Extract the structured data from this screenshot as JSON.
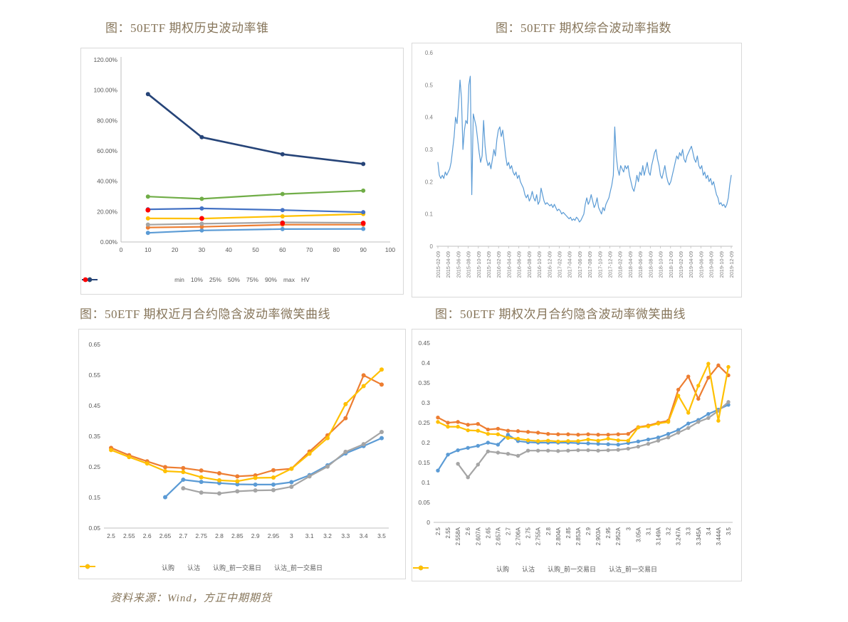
{
  "page": {
    "figure_titles": [
      "图：50ETF 期权历史波动率锥",
      "图：50ETF 期权综合波动率指数",
      "图：50ETF 期权近月合约隐含波动率微笑曲线",
      "图：50ETF 期权次月合约隐含波动率微笑曲线"
    ],
    "source_note": "资料来源：Wind，方正中期期货"
  },
  "colors": {
    "title_text": "#86755A",
    "axis_text": "#595959",
    "axis_line": "#BFBFBF",
    "chart_border": "#D9D9D9",
    "series_light_blue": "#5B9BD5",
    "series_orange": "#ED7D31",
    "series_gray": "#A5A5A5",
    "series_yellow": "#FFC000",
    "series_mid_blue": "#4472C4",
    "series_green": "#70AD47",
    "series_navy": "#264478",
    "series_red": "#FF0000"
  },
  "chart_data": [
    {
      "id": "hist-vol-cone",
      "type": "line",
      "title": "图：50ETF 期权历史波动率锥",
      "x_numeric": [
        10,
        30,
        60,
        90
      ],
      "xlim": [
        0,
        100
      ],
      "xticks": [
        {
          "v": 0,
          "label": "0"
        },
        {
          "v": 10,
          "label": "10"
        },
        {
          "v": 20,
          "label": "20"
        },
        {
          "v": 30,
          "label": "30"
        },
        {
          "v": 40,
          "label": "40"
        },
        {
          "v": 50,
          "label": "50"
        },
        {
          "v": 60,
          "label": "60"
        },
        {
          "v": 70,
          "label": "70"
        },
        {
          "v": 80,
          "label": "80"
        },
        {
          "v": 90,
          "label": "90"
        },
        {
          "v": 100,
          "label": "100"
        }
      ],
      "ylim": [
        0,
        1.2
      ],
      "yticks": [
        {
          "v": 0,
          "label": "0.00%"
        },
        {
          "v": 0.2,
          "label": "20.00%"
        },
        {
          "v": 0.4,
          "label": "40.00%"
        },
        {
          "v": 0.6,
          "label": "60.00%"
        },
        {
          "v": 0.8,
          "label": "80.00%"
        },
        {
          "v": 1.0,
          "label": "100.00%"
        },
        {
          "v": 1.2,
          "label": "120.00%"
        }
      ],
      "legend_position": "bottom",
      "series": [
        {
          "name": "min",
          "color": "#5B9BD5",
          "values": [
            0.06,
            0.076,
            0.085,
            0.086
          ]
        },
        {
          "name": "10%",
          "color": "#ED7D31",
          "values": [
            0.095,
            0.1,
            0.114,
            0.114
          ]
        },
        {
          "name": "25%",
          "color": "#A5A5A5",
          "values": [
            0.114,
            0.12,
            0.129,
            0.126
          ]
        },
        {
          "name": "50%",
          "color": "#FFC000",
          "values": [
            0.155,
            0.154,
            0.169,
            0.184
          ]
        },
        {
          "name": "75%",
          "color": "#4472C4",
          "values": [
            0.215,
            0.221,
            0.21,
            0.196
          ]
        },
        {
          "name": "90%",
          "color": "#70AD47",
          "values": [
            0.299,
            0.284,
            0.316,
            0.338
          ]
        },
        {
          "name": "max",
          "color": "#264478",
          "width": 2.6,
          "values": [
            0.974,
            0.69,
            0.578,
            0.514
          ]
        },
        {
          "name": "HV",
          "color": "#FF0000",
          "marker_only": true,
          "values": [
            0.21,
            0.155,
            0.124,
            0.124
          ]
        }
      ]
    },
    {
      "id": "composite-vol-index",
      "type": "line",
      "title": "图：50ETF 期权综合波动率指数",
      "ylim": [
        0,
        0.6
      ],
      "yticks": [
        {
          "v": 0,
          "label": "0"
        },
        {
          "v": 0.1,
          "label": "0.1"
        },
        {
          "v": 0.2,
          "label": "0.2"
        },
        {
          "v": 0.3,
          "label": "0.3"
        },
        {
          "v": 0.4,
          "label": "0.4"
        },
        {
          "v": 0.5,
          "label": "0.5"
        },
        {
          "v": 0.6,
          "label": "0.6"
        }
      ],
      "xtick_labels": [
        "2015-02-09",
        "2015-04-09",
        "2015-06-09",
        "2015-08-09",
        "2015-10-09",
        "2015-12-09",
        "2016-02-09",
        "2016-04-09",
        "2016-06-09",
        "2016-08-09",
        "2016-10-09",
        "2016-12-09",
        "2017-02-09",
        "2017-04-09",
        "2017-06-09",
        "2017-08-09",
        "2017-10-09",
        "2017-12-09",
        "2018-02-09",
        "2018-04-09",
        "2018-06-09",
        "2018-08-09",
        "2018-10-09",
        "2018-12-09",
        "2019-02-09",
        "2019-04-09",
        "2019-06-09",
        "2019-08-09",
        "2019-10-09",
        "2019-12-09"
      ],
      "legend_position": "none",
      "series": [
        {
          "name": "综合波动率指数",
          "color": "#5B9BD5",
          "width": 1.2,
          "no_marker": true,
          "values": [
            0.26,
            0.22,
            0.21,
            0.22,
            0.21,
            0.23,
            0.22,
            0.23,
            0.24,
            0.26,
            0.3,
            0.34,
            0.4,
            0.38,
            0.44,
            0.515,
            0.46,
            0.3,
            0.36,
            0.39,
            0.38,
            0.5,
            0.527,
            0.16,
            0.41,
            0.39,
            0.37,
            0.33,
            0.29,
            0.26,
            0.28,
            0.39,
            0.31,
            0.27,
            0.25,
            0.26,
            0.24,
            0.27,
            0.3,
            0.28,
            0.33,
            0.36,
            0.37,
            0.34,
            0.36,
            0.32,
            0.28,
            0.25,
            0.26,
            0.24,
            0.25,
            0.23,
            0.22,
            0.23,
            0.21,
            0.22,
            0.2,
            0.19,
            0.18,
            0.16,
            0.15,
            0.16,
            0.14,
            0.15,
            0.17,
            0.15,
            0.14,
            0.16,
            0.13,
            0.14,
            0.18,
            0.16,
            0.14,
            0.13,
            0.135,
            0.13,
            0.125,
            0.13,
            0.12,
            0.13,
            0.12,
            0.11,
            0.115,
            0.11,
            0.1,
            0.105,
            0.1,
            0.095,
            0.09,
            0.085,
            0.09,
            0.08,
            0.085,
            0.08,
            0.09,
            0.085,
            0.075,
            0.08,
            0.09,
            0.1,
            0.13,
            0.15,
            0.13,
            0.14,
            0.16,
            0.14,
            0.12,
            0.13,
            0.15,
            0.12,
            0.11,
            0.1,
            0.12,
            0.11,
            0.13,
            0.14,
            0.15,
            0.17,
            0.19,
            0.22,
            0.37,
            0.28,
            0.24,
            0.22,
            0.25,
            0.24,
            0.23,
            0.25,
            0.24,
            0.25,
            0.22,
            0.2,
            0.18,
            0.17,
            0.19,
            0.22,
            0.2,
            0.23,
            0.22,
            0.25,
            0.22,
            0.24,
            0.26,
            0.23,
            0.22,
            0.25,
            0.27,
            0.29,
            0.3,
            0.27,
            0.25,
            0.22,
            0.21,
            0.23,
            0.25,
            0.22,
            0.2,
            0.19,
            0.2,
            0.22,
            0.24,
            0.26,
            0.28,
            0.27,
            0.29,
            0.28,
            0.3,
            0.27,
            0.26,
            0.28,
            0.29,
            0.3,
            0.31,
            0.29,
            0.27,
            0.26,
            0.28,
            0.25,
            0.24,
            0.25,
            0.22,
            0.23,
            0.21,
            0.22,
            0.2,
            0.21,
            0.19,
            0.2,
            0.18,
            0.16,
            0.15,
            0.13,
            0.135,
            0.125,
            0.13,
            0.12,
            0.13,
            0.15,
            0.19,
            0.22
          ]
        }
      ]
    },
    {
      "id": "near-smile",
      "type": "line",
      "title": "图：50ETF 期权近月合约隐含波动率微笑曲线",
      "categories": [
        "2.5",
        "2.55",
        "2.6",
        "2.65",
        "2.7",
        "2.75",
        "2.8",
        "2.85",
        "2.9",
        "2.95",
        "3",
        "3.1",
        "3.2",
        "3.3",
        "3.4",
        "3.5"
      ],
      "ylim": [
        0.05,
        0.65
      ],
      "yticks": [
        {
          "v": 0.05,
          "label": "0.05"
        },
        {
          "v": 0.15,
          "label": "0.15"
        },
        {
          "v": 0.25,
          "label": "0.25"
        },
        {
          "v": 0.35,
          "label": "0.35"
        },
        {
          "v": 0.45,
          "label": "0.45"
        },
        {
          "v": 0.55,
          "label": "0.55"
        },
        {
          "v": 0.65,
          "label": "0.65"
        }
      ],
      "legend_position": "bottom",
      "series": [
        {
          "name": "认购",
          "color": "#5B9BD5",
          "values": [
            null,
            null,
            null,
            0.151,
            0.208,
            0.201,
            0.197,
            0.193,
            0.192,
            0.192,
            0.2,
            0.223,
            0.255,
            0.294,
            0.318,
            0.344
          ]
        },
        {
          "name": "认沽",
          "color": "#ED7D31",
          "values": [
            0.312,
            0.288,
            0.268,
            0.249,
            0.246,
            0.238,
            0.229,
            0.219,
            0.222,
            0.239,
            0.244,
            0.3,
            0.353,
            0.409,
            0.549,
            0.519
          ]
        },
        {
          "name": "认购_前一交易日",
          "color": "#A5A5A5",
          "values": [
            null,
            null,
            null,
            null,
            0.18,
            0.166,
            0.163,
            0.17,
            0.173,
            0.174,
            0.185,
            0.219,
            0.251,
            0.299,
            0.324,
            0.364
          ]
        },
        {
          "name": "认沽_前一交易日",
          "color": "#FFC000",
          "values": [
            0.305,
            0.282,
            0.261,
            0.236,
            0.233,
            0.216,
            0.206,
            0.203,
            0.214,
            0.215,
            0.244,
            0.293,
            0.344,
            0.455,
            0.514,
            0.568
          ]
        }
      ]
    },
    {
      "id": "next-smile",
      "type": "line",
      "title": "图：50ETF 期权次月合约隐含波动率微笑曲线",
      "categories": [
        "2.5",
        "2.55",
        "2.558A",
        "2.6",
        "2.607A",
        "2.65",
        "2.657A",
        "2.7",
        "2.706A",
        "2.75",
        "2.755A",
        "2.8",
        "2.804A",
        "2.85",
        "2.853A",
        "2.9",
        "2.903A",
        "2.95",
        "2.952A",
        "3",
        "3.05A",
        "3.1",
        "3.149A",
        "3.2",
        "3.247A",
        "3.3",
        "3.345A",
        "3.4",
        "3.444A",
        "3.5"
      ],
      "ylim": [
        0,
        0.45
      ],
      "yticks": [
        {
          "v": 0,
          "label": "0"
        },
        {
          "v": 0.05,
          "label": "0.05"
        },
        {
          "v": 0.1,
          "label": "0.1"
        },
        {
          "v": 0.15,
          "label": "0.15"
        },
        {
          "v": 0.2,
          "label": "0.2"
        },
        {
          "v": 0.25,
          "label": "0.25"
        },
        {
          "v": 0.3,
          "label": "0.3"
        },
        {
          "v": 0.35,
          "label": "0.35"
        },
        {
          "v": 0.4,
          "label": "0.4"
        },
        {
          "v": 0.45,
          "label": "0.45"
        }
      ],
      "legend_position": "bottom",
      "series": [
        {
          "name": "认购",
          "color": "#5B9BD5",
          "values": [
            0.13,
            0.17,
            0.181,
            0.187,
            0.192,
            0.2,
            0.195,
            0.22,
            0.204,
            0.201,
            0.2,
            0.2,
            0.2,
            0.2,
            0.199,
            0.198,
            0.197,
            0.196,
            0.195,
            0.199,
            0.203,
            0.208,
            0.213,
            0.222,
            0.232,
            0.248,
            0.257,
            0.272,
            0.283,
            0.295
          ]
        },
        {
          "name": "认沽",
          "color": "#ED7D31",
          "values": [
            0.263,
            0.25,
            0.252,
            0.245,
            0.247,
            0.233,
            0.235,
            0.23,
            0.229,
            0.227,
            0.225,
            0.222,
            0.221,
            0.221,
            0.22,
            0.221,
            0.22,
            0.22,
            0.221,
            0.222,
            0.239,
            0.243,
            0.25,
            0.255,
            0.333,
            0.366,
            0.31,
            0.363,
            0.394,
            0.369
          ]
        },
        {
          "name": "认购_前一交易日",
          "color": "#A5A5A5",
          "values": [
            null,
            null,
            0.147,
            0.113,
            0.145,
            0.178,
            0.175,
            0.172,
            0.167,
            0.18,
            0.18,
            0.18,
            0.179,
            0.18,
            0.181,
            0.181,
            0.18,
            0.181,
            0.182,
            0.185,
            0.19,
            0.197,
            0.205,
            0.213,
            0.225,
            0.237,
            0.252,
            0.262,
            0.28,
            0.302
          ]
        },
        {
          "name": "认沽_前一交易日",
          "color": "#FFC000",
          "values": [
            0.252,
            0.24,
            0.24,
            0.231,
            0.23,
            0.222,
            0.221,
            0.212,
            0.21,
            0.206,
            0.204,
            0.205,
            0.203,
            0.204,
            0.204,
            0.208,
            0.205,
            0.21,
            0.206,
            0.205,
            0.238,
            0.241,
            0.248,
            0.252,
            0.318,
            0.275,
            0.343,
            0.398,
            0.255,
            0.39
          ]
        }
      ]
    }
  ]
}
